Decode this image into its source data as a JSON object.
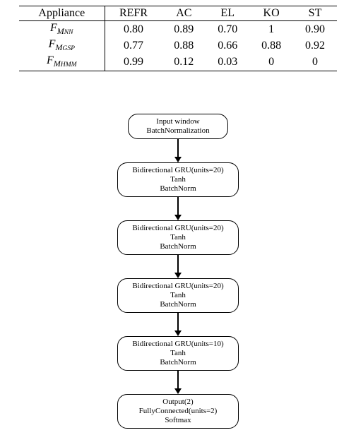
{
  "table": {
    "columns": [
      "Appliance",
      "REFR",
      "AC",
      "EL",
      "KO",
      "ST"
    ],
    "rows": [
      {
        "label_base": "F",
        "label_sub1": "M",
        "label_sub2": "NN",
        "values": [
          "0.80",
          "0.89",
          "0.70",
          "1",
          "0.90"
        ]
      },
      {
        "label_base": "F",
        "label_sub1": "M",
        "label_sub2": "GSP",
        "values": [
          "0.77",
          "0.88",
          "0.66",
          "0.88",
          "0.92"
        ]
      },
      {
        "label_base": "F",
        "label_sub1": "M",
        "label_sub2": "HMM",
        "values": [
          "0.99",
          "0.12",
          "0.03",
          "0",
          "0"
        ]
      }
    ],
    "font_size": 16,
    "border_color": "#000000",
    "background_color": "#ffffff"
  },
  "flow": {
    "type": "flowchart",
    "node_border_color": "#000000",
    "node_border_radius": 14,
    "node_fontsize": 11,
    "arrow_color": "#000000",
    "nodes": [
      {
        "lines": [
          "Input window",
          "BatchNormalization"
        ],
        "small": true
      },
      {
        "lines": [
          "Bidirectional GRU(units=20)",
          "Tanh",
          "BatchNorm"
        ]
      },
      {
        "lines": [
          "Bidirectional GRU(units=20)",
          "Tanh",
          "BatchNorm"
        ]
      },
      {
        "lines": [
          "Bidirectional GRU(units=20)",
          "Tanh",
          "BatchNorm"
        ]
      },
      {
        "lines": [
          "Bidirectional GRU(units=10)",
          "Tanh",
          "BatchNorm"
        ]
      },
      {
        "lines": [
          "Output(2)",
          "FullyConnected(units=2)",
          "Softmax"
        ]
      }
    ]
  }
}
